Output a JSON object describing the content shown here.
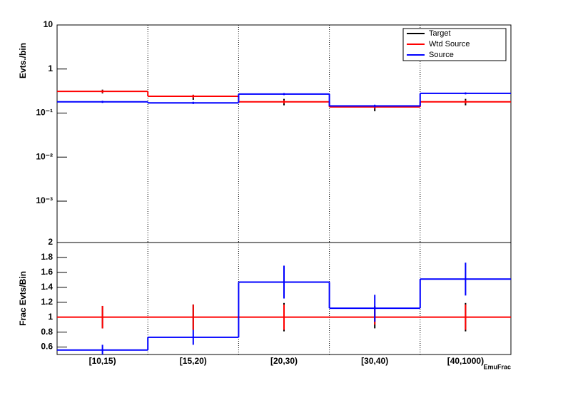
{
  "chart_data": [
    {
      "type": "step",
      "y_label": "Evts./bin",
      "log_scale": true,
      "ylim": [
        0.000115,
        10
      ],
      "yticks": [
        10,
        1,
        {
          "value": 0.1,
          "label": "10⁻¹"
        },
        {
          "value": 0.01,
          "label": "10⁻²"
        },
        {
          "value": 0.001,
          "label": "10⁻³"
        }
      ],
      "legend": "top-right",
      "series": [
        {
          "name": "Target",
          "color": "#000000",
          "style": "points",
          "values": [
            0.31,
            0.23,
            0.18,
            0.13,
            0.18
          ],
          "errors": [
            0.03,
            0.03,
            0.03,
            0.02,
            0.03
          ]
        },
        {
          "name": "Wtd Source",
          "color": "#ff0000",
          "style": "step",
          "values": [
            0.31,
            0.24,
            0.18,
            0.138,
            0.18
          ],
          "errors": [
            0.02,
            0.02,
            0.015,
            0.012,
            0.015
          ]
        },
        {
          "name": "Source",
          "color": "#0000ff",
          "style": "step",
          "values": [
            0.18,
            0.17,
            0.27,
            0.145,
            0.28
          ],
          "errors": [
            0.01,
            0.01,
            0.015,
            0.01,
            0.015
          ]
        }
      ]
    },
    {
      "type": "step",
      "y_label": "Frac Evts/Bin",
      "x_label": "EmuFrac",
      "log_scale": false,
      "ylim": [
        0.5,
        2
      ],
      "yticks": [
        0.6,
        0.8,
        1,
        1.2,
        1.4,
        1.6,
        1.8,
        2
      ],
      "categories": [
        "[10,15)",
        "[15,20)",
        "[20,30)",
        "[30,40)",
        "[40,1000)"
      ],
      "series": [
        {
          "color": "#000000",
          "style": "points",
          "values": [
            1,
            1,
            1,
            1,
            1
          ],
          "errors": [
            0.15,
            0.17,
            0.19,
            0.15,
            0.19
          ]
        },
        {
          "color": "#ff0000",
          "style": "step",
          "values": [
            1,
            1,
            1,
            1,
            1
          ],
          "errors": [
            0.15,
            0.17,
            0.17,
            0.1,
            0.17
          ]
        },
        {
          "color": "#0000ff",
          "style": "step",
          "values": [
            0.56,
            0.73,
            1.47,
            1.12,
            1.51
          ],
          "errors": [
            0.07,
            0.1,
            0.22,
            0.18,
            0.22
          ]
        }
      ]
    }
  ]
}
